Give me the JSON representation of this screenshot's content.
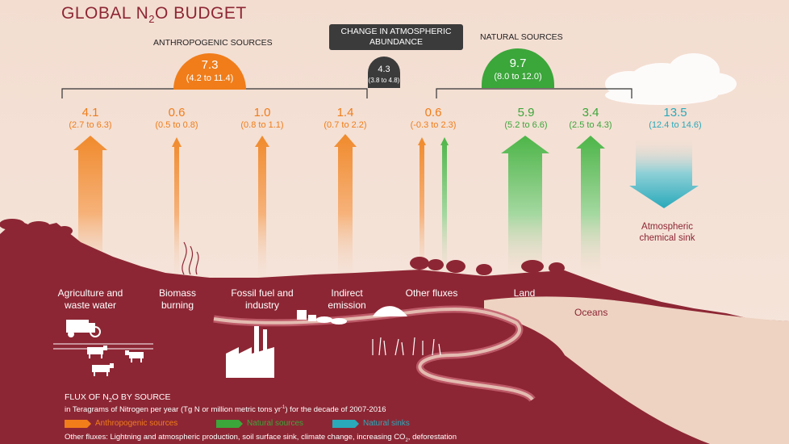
{
  "title": {
    "prefix": "GLOBAL N",
    "sub": "2",
    "suffix": "O BUDGET"
  },
  "anthropogenic": {
    "header": "ANTHROPOGENIC SOURCES",
    "value": "7.3",
    "range": "(4.2 to 11.4)"
  },
  "change": {
    "header": "CHANGE IN ATMOSPHERIC ABUNDANCE",
    "value": "4.3",
    "range": "(3.8 to 4.8)"
  },
  "natural": {
    "header": "NATURAL SOURCES",
    "value": "9.7",
    "range": "(8.0 to 12.0)"
  },
  "fluxes": [
    {
      "value": "4.1",
      "range": "(2.7 to 6.3)",
      "kind": "anthropogenic"
    },
    {
      "value": "0.6",
      "range": "(0.5 to 0.8)",
      "kind": "anthropogenic"
    },
    {
      "value": "1.0",
      "range": "(0.8 to 1.1)",
      "kind": "anthropogenic"
    },
    {
      "value": "1.4",
      "range": "(0.7 to 2.2)",
      "kind": "anthropogenic"
    },
    {
      "value": "0.6",
      "range": "(-0.3 to 2.3)",
      "kind": "mixed"
    },
    {
      "value": "5.9",
      "range": "(5.2 to 6.6)",
      "kind": "natural"
    },
    {
      "value": "3.4",
      "range": "(2.5 to 4.3)",
      "kind": "natural"
    },
    {
      "value": "13.5",
      "range": "(12.4 to 14.6)",
      "kind": "sink"
    }
  ],
  "labels": {
    "agriculture": "Agriculture and waste water",
    "biomass": "Biomass burning",
    "fossil": "Fossil fuel and industry",
    "indirect": "Indirect emission",
    "other": "Other fluxes",
    "land": "Land",
    "oceans": "Oceans",
    "sink": "Atmospheric chemical sink"
  },
  "legend": {
    "heading_prefix": "FLUX OF N",
    "heading_sub": "2",
    "heading_suffix": "O BY SOURCE",
    "units_prefix": "in Teragrams of Nitrogen per year (Tg N or million metric tons yr",
    "units_sup": "-1",
    "units_suffix": ") for the decade of 2007-2016",
    "anthropogenic": "Anthropogenic sources",
    "natural": "Natural sources",
    "sinks": "Natural sinks",
    "other_prefix": "Other fluxes: Lightning and atmospheric production, soil surface sink, climate change, increasing CO",
    "other_sub": "2",
    "other_suffix": ", deforestation"
  },
  "colors": {
    "anthropogenic": "#f07d1a",
    "natural": "#3ba63a",
    "sink": "#2aa9ba",
    "land": "#8d2634",
    "background": "#f3ddd1"
  }
}
